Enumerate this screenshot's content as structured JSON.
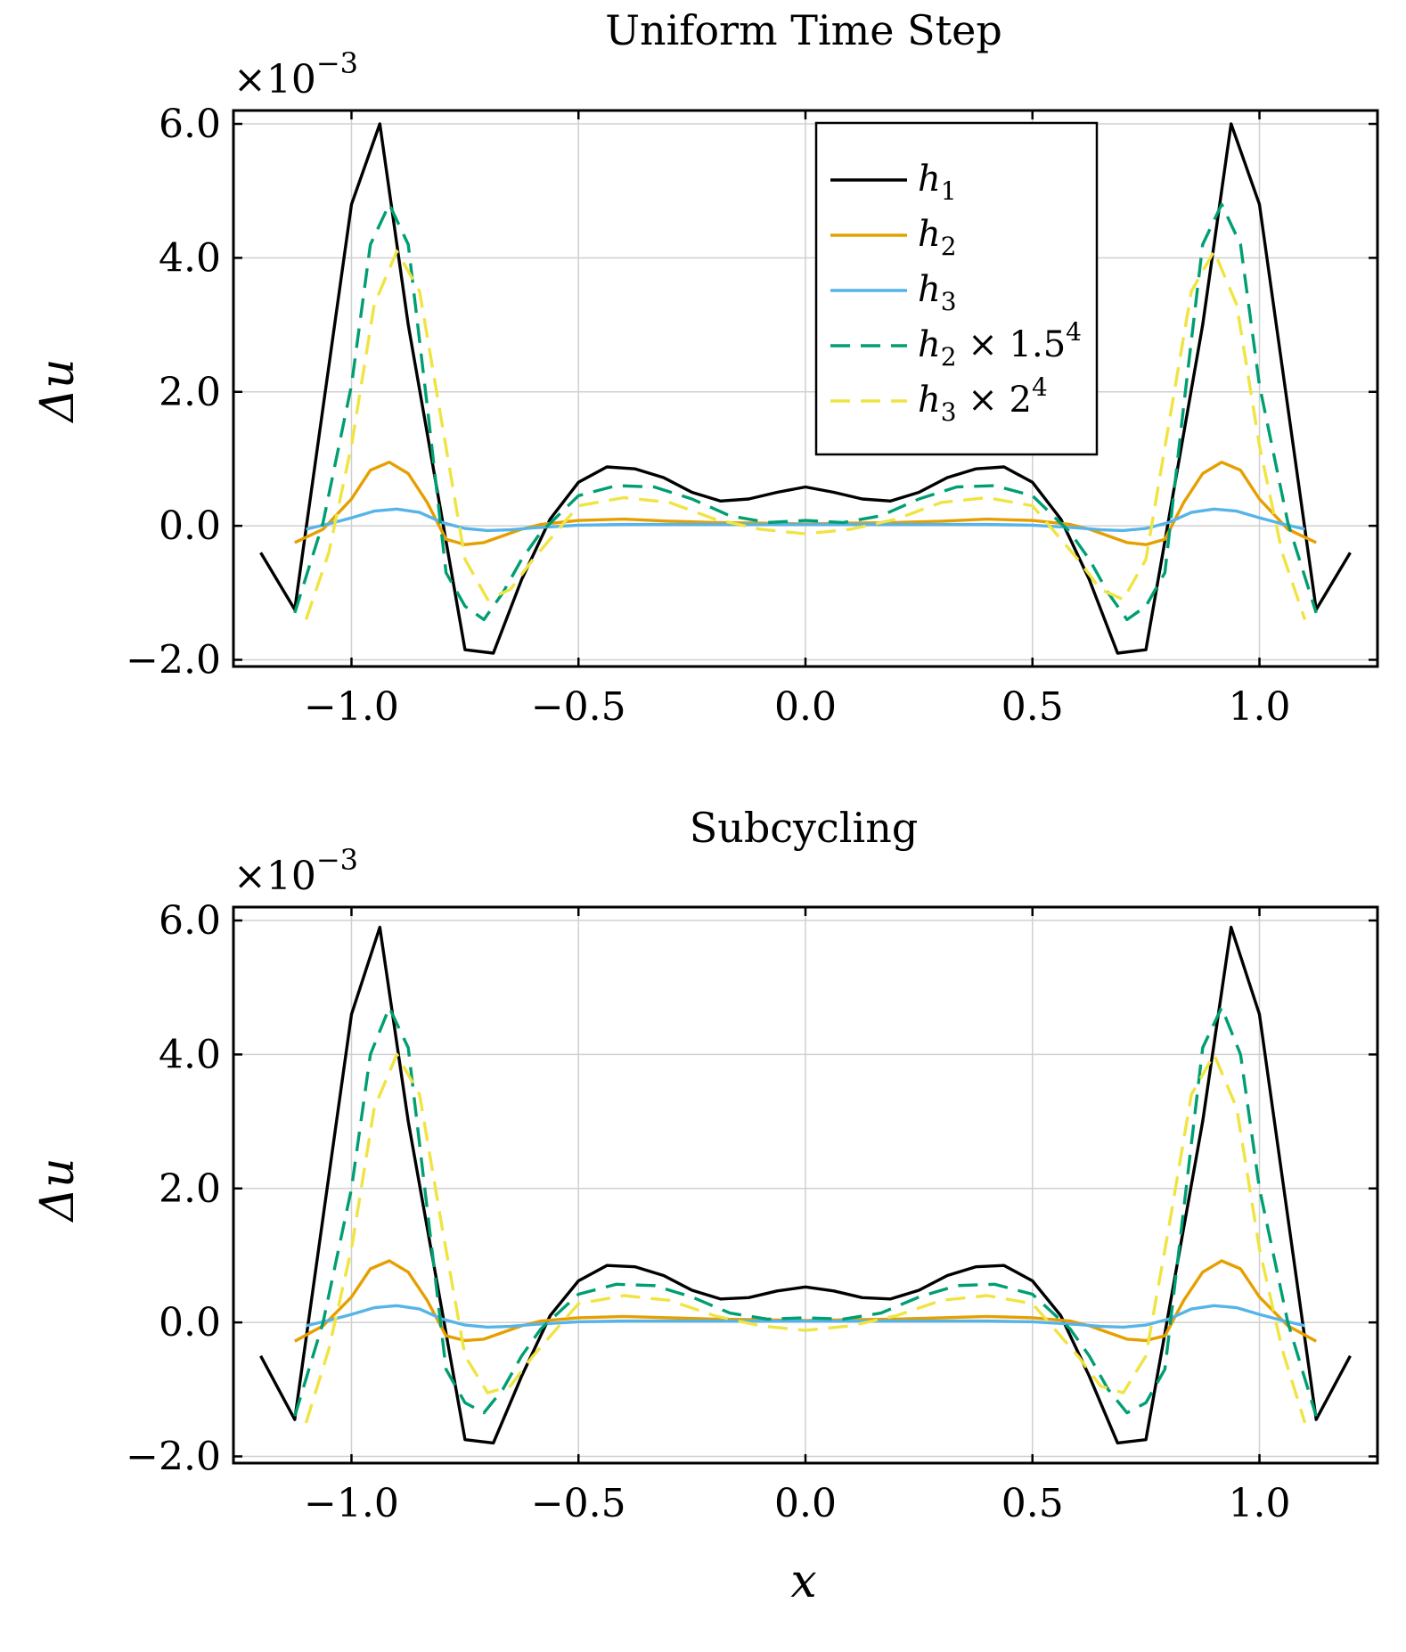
{
  "chart_data": [
    {
      "type": "line",
      "title": "Uniform Time Step",
      "xlabel": "",
      "ylabel": "Δu",
      "y_multiplier": "×10",
      "y_exponent": "−3",
      "xlim": [
        -1.26,
        1.26
      ],
      "ylim": [
        -2.1,
        6.2
      ],
      "xticks": [
        -1.0,
        -0.5,
        0.0,
        0.5,
        1.0
      ],
      "xtick_labels": [
        "−1.0",
        "−0.5",
        "0.0",
        "0.5",
        "1.0"
      ],
      "yticks": [
        -2.0,
        0.0,
        2.0,
        4.0,
        6.0
      ],
      "ytick_labels": [
        "−2.0",
        "0.0",
        "2.0",
        "4.0",
        "6.0"
      ],
      "grid": true,
      "legend_position": "top-right",
      "series": [
        {
          "name": "h1",
          "label": "h",
          "sub": "1",
          "suffix": "",
          "sup": "",
          "color": "#000000",
          "dash": "",
          "x": [
            -1.2,
            -1.125,
            -1.0,
            -0.9375,
            -0.875,
            -0.75,
            -0.6875,
            -0.625,
            -0.5625,
            -0.5,
            -0.4375,
            -0.375,
            -0.3125,
            -0.25,
            -0.1875,
            -0.125,
            -0.0625,
            0.0,
            0.0625,
            0.125,
            0.1875,
            0.25,
            0.3125,
            0.375,
            0.4375,
            0.5,
            0.5625,
            0.625,
            0.6875,
            0.75,
            0.875,
            0.9375,
            1.0,
            1.125,
            1.2
          ],
          "y": [
            -0.4,
            -1.25,
            4.8,
            6.0,
            3.0,
            -1.85,
            -1.9,
            -0.8,
            0.1,
            0.65,
            0.88,
            0.85,
            0.72,
            0.5,
            0.37,
            0.4,
            0.5,
            0.58,
            0.5,
            0.4,
            0.37,
            0.5,
            0.72,
            0.85,
            0.88,
            0.65,
            0.1,
            -0.8,
            -1.9,
            -1.85,
            3.0,
            6.0,
            4.8,
            -1.25,
            -0.4
          ]
        },
        {
          "name": "h2",
          "label": "h",
          "sub": "2",
          "suffix": "",
          "sup": "",
          "color": "#E69F00",
          "dash": "",
          "x": [
            -1.125,
            -1.0625,
            -1.0,
            -0.9583,
            -0.9167,
            -0.875,
            -0.8333,
            -0.7917,
            -0.75,
            -0.7083,
            -0.6667,
            -0.625,
            -0.5833,
            -0.5,
            -0.4,
            -0.3,
            -0.2,
            -0.1,
            0.0,
            0.1,
            0.2,
            0.3,
            0.4,
            0.5,
            0.5833,
            0.625,
            0.6667,
            0.7083,
            0.75,
            0.7917,
            0.8333,
            0.875,
            0.9167,
            0.9583,
            1.0,
            1.0625,
            1.125
          ],
          "y": [
            -0.25,
            -0.05,
            0.4,
            0.83,
            0.95,
            0.78,
            0.35,
            -0.2,
            -0.28,
            -0.25,
            -0.15,
            -0.05,
            0.02,
            0.08,
            0.1,
            0.07,
            0.05,
            0.04,
            0.03,
            0.04,
            0.05,
            0.07,
            0.1,
            0.08,
            0.02,
            -0.05,
            -0.15,
            -0.25,
            -0.28,
            -0.2,
            0.35,
            0.78,
            0.95,
            0.83,
            0.4,
            -0.05,
            -0.25
          ]
        },
        {
          "name": "h3",
          "label": "h",
          "sub": "3",
          "suffix": "",
          "sup": "",
          "color": "#56B4E9",
          "dash": "",
          "x": [
            -1.1,
            -1.05,
            -1.0,
            -0.95,
            -0.9,
            -0.85,
            -0.8,
            -0.75,
            -0.7,
            -0.65,
            -0.6,
            -0.5,
            -0.4,
            -0.3,
            -0.2,
            -0.1,
            0.0,
            0.1,
            0.2,
            0.3,
            0.4,
            0.5,
            0.6,
            0.65,
            0.7,
            0.75,
            0.8,
            0.85,
            0.9,
            0.95,
            1.0,
            1.05,
            1.1
          ],
          "y": [
            -0.05,
            0.03,
            0.12,
            0.22,
            0.25,
            0.2,
            0.05,
            -0.04,
            -0.07,
            -0.06,
            -0.03,
            0.01,
            0.02,
            0.02,
            0.02,
            0.02,
            0.02,
            0.02,
            0.02,
            0.02,
            0.02,
            0.01,
            -0.03,
            -0.06,
            -0.07,
            -0.04,
            0.05,
            0.2,
            0.25,
            0.22,
            0.12,
            0.03,
            -0.05
          ]
        },
        {
          "name": "h2x1.5^4",
          "label": "h",
          "sub": "2",
          "suffix": " × 1.5",
          "sup": "4",
          "color": "#009E73",
          "dash": "22,12",
          "x": [
            -1.125,
            -1.0625,
            -1.0,
            -0.9583,
            -0.9167,
            -0.875,
            -0.8333,
            -0.7917,
            -0.75,
            -0.7083,
            -0.6667,
            -0.625,
            -0.5833,
            -0.5,
            -0.4167,
            -0.3333,
            -0.25,
            -0.1667,
            -0.0833,
            0.0,
            0.0833,
            0.1667,
            0.25,
            0.3333,
            0.4167,
            0.5,
            0.5833,
            0.625,
            0.6667,
            0.7083,
            0.75,
            0.7917,
            0.8333,
            0.875,
            0.9167,
            0.9583,
            1.0,
            1.0625,
            1.125
          ],
          "y": [
            -1.3,
            0.05,
            2.1,
            4.2,
            4.8,
            4.2,
            1.8,
            -0.7,
            -1.2,
            -1.4,
            -1.0,
            -0.5,
            -0.1,
            0.45,
            0.6,
            0.58,
            0.4,
            0.15,
            0.05,
            0.08,
            0.05,
            0.15,
            0.4,
            0.58,
            0.6,
            0.45,
            -0.1,
            -0.5,
            -1.0,
            -1.4,
            -1.2,
            -0.7,
            1.8,
            4.2,
            4.8,
            4.2,
            2.1,
            0.05,
            -1.3
          ]
        },
        {
          "name": "h3x2^4",
          "label": "h",
          "sub": "3",
          "suffix": " × 2",
          "sup": "4",
          "color": "#F0E442",
          "dash": "22,12",
          "x": [
            -1.1,
            -1.05,
            -1.0,
            -0.95,
            -0.9,
            -0.85,
            -0.8,
            -0.75,
            -0.7,
            -0.65,
            -0.6,
            -0.5,
            -0.4,
            -0.3,
            -0.2,
            -0.1,
            0.0,
            0.1,
            0.2,
            0.3,
            0.4,
            0.5,
            0.6,
            0.65,
            0.7,
            0.75,
            0.8,
            0.85,
            0.9,
            0.95,
            1.0,
            1.05,
            1.1
          ],
          "y": [
            -1.4,
            -0.4,
            1.2,
            3.3,
            4.1,
            3.5,
            1.5,
            -0.5,
            -1.1,
            -0.95,
            -0.5,
            0.3,
            0.42,
            0.35,
            0.1,
            -0.05,
            -0.12,
            -0.05,
            0.1,
            0.35,
            0.42,
            0.3,
            -0.5,
            -0.95,
            -1.1,
            -0.5,
            1.5,
            3.5,
            4.1,
            3.3,
            1.2,
            -0.4,
            -1.4
          ]
        }
      ]
    },
    {
      "type": "line",
      "title": "Subcycling",
      "xlabel": "x",
      "ylabel": "Δu",
      "y_multiplier": "×10",
      "y_exponent": "−3",
      "xlim": [
        -1.26,
        1.26
      ],
      "ylim": [
        -2.1,
        6.2
      ],
      "xticks": [
        -1.0,
        -0.5,
        0.0,
        0.5,
        1.0
      ],
      "xtick_labels": [
        "−1.0",
        "−0.5",
        "0.0",
        "0.5",
        "1.0"
      ],
      "yticks": [
        -2.0,
        0.0,
        2.0,
        4.0,
        6.0
      ],
      "ytick_labels": [
        "−2.0",
        "0.0",
        "2.0",
        "4.0",
        "6.0"
      ],
      "grid": true,
      "series": [
        {
          "name": "h1",
          "color": "#000000",
          "dash": "",
          "x": [
            -1.2,
            -1.125,
            -1.0,
            -0.9375,
            -0.875,
            -0.75,
            -0.6875,
            -0.625,
            -0.5625,
            -0.5,
            -0.4375,
            -0.375,
            -0.3125,
            -0.25,
            -0.1875,
            -0.125,
            -0.0625,
            0.0,
            0.0625,
            0.125,
            0.1875,
            0.25,
            0.3125,
            0.375,
            0.4375,
            0.5,
            0.5625,
            0.625,
            0.6875,
            0.75,
            0.875,
            0.9375,
            1.0,
            1.125,
            1.2
          ],
          "y": [
            -0.5,
            -1.45,
            4.6,
            5.9,
            3.0,
            -1.75,
            -1.8,
            -0.8,
            0.1,
            0.62,
            0.85,
            0.83,
            0.7,
            0.48,
            0.35,
            0.37,
            0.47,
            0.53,
            0.47,
            0.37,
            0.35,
            0.48,
            0.7,
            0.83,
            0.85,
            0.62,
            0.1,
            -0.8,
            -1.8,
            -1.75,
            3.0,
            5.9,
            4.6,
            -1.45,
            -0.5
          ]
        },
        {
          "name": "h2",
          "color": "#E69F00",
          "dash": "",
          "x": [
            -1.125,
            -1.0625,
            -1.0,
            -0.9583,
            -0.9167,
            -0.875,
            -0.8333,
            -0.7917,
            -0.75,
            -0.7083,
            -0.6667,
            -0.625,
            -0.5833,
            -0.5,
            -0.4,
            -0.3,
            -0.2,
            -0.1,
            0.0,
            0.1,
            0.2,
            0.3,
            0.4,
            0.5,
            0.5833,
            0.625,
            0.6667,
            0.7083,
            0.75,
            0.7917,
            0.8333,
            0.875,
            0.9167,
            0.9583,
            1.0,
            1.0625,
            1.125
          ],
          "y": [
            -0.28,
            -0.05,
            0.38,
            0.8,
            0.92,
            0.75,
            0.33,
            -0.2,
            -0.27,
            -0.25,
            -0.15,
            -0.05,
            0.02,
            0.07,
            0.09,
            0.07,
            0.05,
            0.04,
            0.03,
            0.04,
            0.05,
            0.07,
            0.09,
            0.07,
            0.02,
            -0.05,
            -0.15,
            -0.25,
            -0.27,
            -0.2,
            0.33,
            0.75,
            0.92,
            0.8,
            0.38,
            -0.05,
            -0.28
          ]
        },
        {
          "name": "h3",
          "color": "#56B4E9",
          "dash": "",
          "x": [
            -1.1,
            -1.05,
            -1.0,
            -0.95,
            -0.9,
            -0.85,
            -0.8,
            -0.75,
            -0.7,
            -0.65,
            -0.6,
            -0.5,
            -0.4,
            -0.3,
            -0.2,
            -0.1,
            0.0,
            0.1,
            0.2,
            0.3,
            0.4,
            0.5,
            0.6,
            0.65,
            0.7,
            0.75,
            0.8,
            0.85,
            0.9,
            0.95,
            1.0,
            1.05,
            1.1
          ],
          "y": [
            -0.05,
            0.03,
            0.12,
            0.22,
            0.25,
            0.2,
            0.05,
            -0.04,
            -0.07,
            -0.06,
            -0.03,
            0.01,
            0.02,
            0.02,
            0.02,
            0.02,
            0.02,
            0.02,
            0.02,
            0.02,
            0.02,
            0.01,
            -0.03,
            -0.06,
            -0.07,
            -0.04,
            0.05,
            0.2,
            0.25,
            0.22,
            0.12,
            0.03,
            -0.05
          ]
        },
        {
          "name": "h2x1.5^4",
          "color": "#009E73",
          "dash": "22,12",
          "x": [
            -1.125,
            -1.0625,
            -1.0,
            -0.9583,
            -0.9167,
            -0.875,
            -0.8333,
            -0.7917,
            -0.75,
            -0.7083,
            -0.6667,
            -0.625,
            -0.5833,
            -0.5,
            -0.4167,
            -0.3333,
            -0.25,
            -0.1667,
            -0.0833,
            0.0,
            0.0833,
            0.1667,
            0.25,
            0.3333,
            0.4167,
            0.5,
            0.5833,
            0.625,
            0.6667,
            0.7083,
            0.75,
            0.7917,
            0.8333,
            0.875,
            0.9167,
            0.9583,
            1.0,
            1.0625,
            1.125
          ],
          "y": [
            -1.4,
            0.0,
            2.0,
            4.0,
            4.7,
            4.1,
            1.7,
            -0.7,
            -1.2,
            -1.35,
            -1.0,
            -0.5,
            -0.1,
            0.42,
            0.57,
            0.55,
            0.38,
            0.14,
            0.05,
            0.07,
            0.05,
            0.14,
            0.38,
            0.55,
            0.57,
            0.42,
            -0.1,
            -0.5,
            -1.0,
            -1.35,
            -1.2,
            -0.7,
            1.7,
            4.1,
            4.7,
            4.0,
            2.0,
            0.0,
            -1.4
          ]
        },
        {
          "name": "h3x2^4",
          "color": "#F0E442",
          "dash": "22,12",
          "x": [
            -1.1,
            -1.05,
            -1.0,
            -0.95,
            -0.9,
            -0.85,
            -0.8,
            -0.75,
            -0.7,
            -0.65,
            -0.6,
            -0.5,
            -0.4,
            -0.3,
            -0.2,
            -0.1,
            0.0,
            0.1,
            0.2,
            0.3,
            0.4,
            0.5,
            0.6,
            0.65,
            0.7,
            0.75,
            0.8,
            0.85,
            0.9,
            0.95,
            1.0,
            1.05,
            1.1
          ],
          "y": [
            -1.5,
            -0.4,
            1.1,
            3.2,
            4.0,
            3.4,
            1.4,
            -0.5,
            -1.05,
            -0.95,
            -0.5,
            0.28,
            0.4,
            0.33,
            0.1,
            -0.05,
            -0.12,
            -0.05,
            0.1,
            0.33,
            0.4,
            0.28,
            -0.5,
            -0.95,
            -1.05,
            -0.5,
            1.4,
            3.4,
            4.0,
            3.2,
            1.1,
            -0.4,
            -1.5
          ]
        }
      ]
    }
  ]
}
